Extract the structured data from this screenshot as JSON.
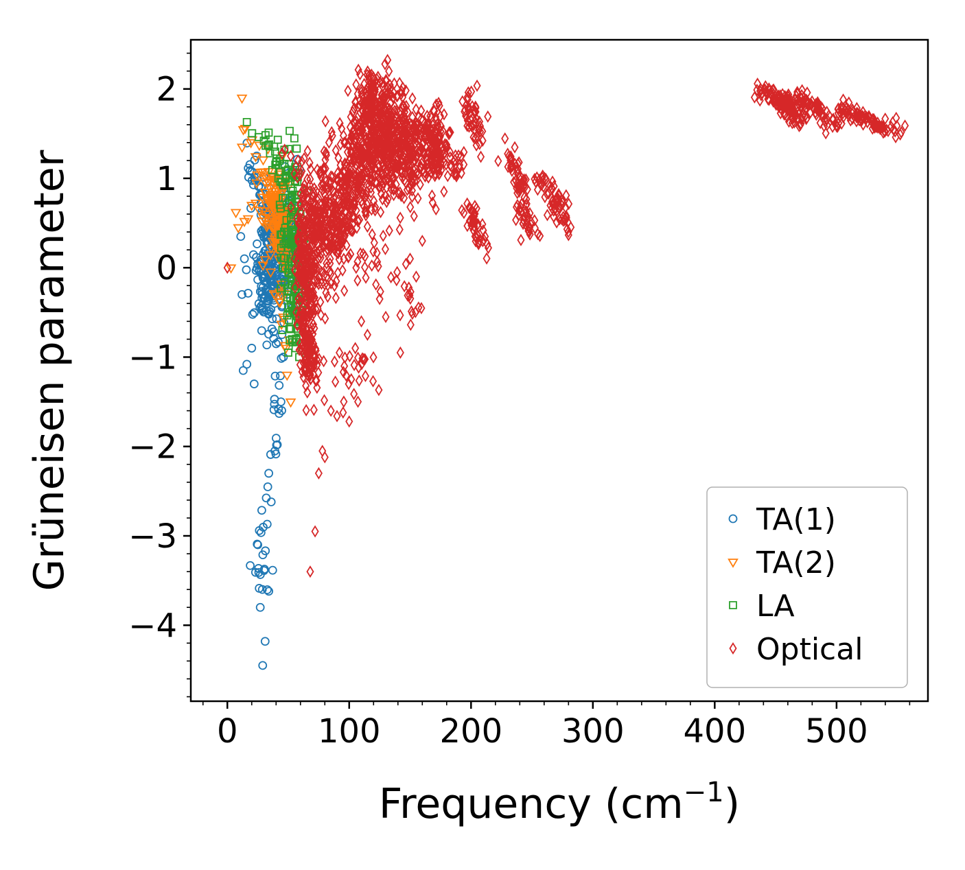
{
  "figure": {
    "xlabel_main": "Frequency (cm",
    "xlabel_sup": "−1",
    "xlabel_close": ")",
    "ylabel": "Grüneisen parameter"
  },
  "chart_data": {
    "type": "scatter",
    "title": "",
    "xlabel": "Frequency (cm^-1)",
    "ylabel": "Grüneisen parameter",
    "xlim": [
      -30,
      575
    ],
    "ylim": [
      -4.85,
      2.55
    ],
    "x_ticks": [
      0,
      100,
      200,
      300,
      400,
      500
    ],
    "x_tick_labels": [
      "0",
      "100",
      "200",
      "300",
      "400",
      "500"
    ],
    "x_minor_step": 20,
    "y_ticks": [
      2,
      1,
      0,
      -1,
      -2,
      -3,
      -4
    ],
    "y_tick_labels": [
      "2",
      "1",
      "0",
      "−1",
      "−2",
      "−3",
      "−4"
    ],
    "y_minor_step": 0.2,
    "grid": false,
    "legend": {
      "position": "lower right",
      "entries": [
        {
          "label": "TA(1)",
          "marker": "circle",
          "color": "#1f77b4"
        },
        {
          "label": "TA(2)",
          "marker": "triangle-down",
          "color": "#ff7f0e"
        },
        {
          "label": "LA",
          "marker": "square",
          "color": "#2ca02c"
        },
        {
          "label": "Optical",
          "marker": "diamond-thin",
          "color": "#d62728"
        }
      ]
    },
    "series": [
      {
        "name": "TA(1)",
        "marker": "circle",
        "color": "#1f77b4",
        "seed": 11,
        "clusters": [
          {
            "kind": "gauss",
            "cx": 38,
            "cy": 0.15,
            "sx": 7,
            "sy": 0.3,
            "n": 150
          },
          {
            "kind": "gauss",
            "cx": 33,
            "cy": -0.25,
            "sx": 7,
            "sy": 0.3,
            "n": 80
          },
          {
            "kind": "gauss",
            "cx": 45,
            "cy": 0.35,
            "sx": 6,
            "sy": 0.25,
            "n": 60
          },
          {
            "kind": "streak",
            "x1": 17,
            "y1": 1.25,
            "x2": 38,
            "y2": 0.5,
            "jx": 2,
            "jy": 0.12,
            "n": 30
          },
          {
            "kind": "streak",
            "x1": 24,
            "y1": -3.45,
            "x2": 43,
            "y2": -1.15,
            "jx": 2.5,
            "jy": 0.22,
            "n": 26
          },
          {
            "kind": "gauss",
            "cx": 27,
            "cy": -3.42,
            "sx": 4,
            "sy": 0.14,
            "n": 10
          }
        ],
        "points": [
          [
            29,
            -4.45
          ],
          [
            31,
            -4.18
          ],
          [
            27,
            -3.8
          ],
          [
            34,
            -3.62
          ],
          [
            25,
            -3.1
          ],
          [
            36,
            -2.62
          ],
          [
            34,
            -2.3
          ],
          [
            39,
            -2.05
          ],
          [
            41,
            -1.98
          ],
          [
            13,
            -1.15
          ],
          [
            16,
            -1.08
          ],
          [
            20,
            -0.9
          ],
          [
            22,
            -1.3
          ],
          [
            44,
            -1.5
          ],
          [
            46,
            -1.0
          ],
          [
            40,
            -0.85
          ],
          [
            11,
            0.35
          ],
          [
            12,
            -0.3
          ],
          [
            14,
            0.1
          ]
        ]
      },
      {
        "name": "TA(2)",
        "marker": "triangle-down",
        "color": "#ff7f0e",
        "seed": 22,
        "clusters": [
          {
            "kind": "gauss",
            "cx": 42,
            "cy": 0.55,
            "sx": 6,
            "sy": 0.25,
            "n": 120
          },
          {
            "kind": "gauss",
            "cx": 36,
            "cy": 0.8,
            "sx": 5,
            "sy": 0.2,
            "n": 40
          },
          {
            "kind": "streak",
            "x1": 13,
            "y1": 1.62,
            "x2": 36,
            "y2": 0.95,
            "jx": 2,
            "jy": 0.1,
            "n": 14
          },
          {
            "kind": "streak",
            "x1": 40,
            "y1": -0.2,
            "x2": 50,
            "y2": -0.85,
            "jx": 2,
            "jy": 0.15,
            "n": 10
          }
        ],
        "points": [
          [
            12,
            1.9
          ],
          [
            7,
            0.62
          ],
          [
            9,
            0.45
          ],
          [
            14,
            0.52
          ],
          [
            3,
            0.0
          ],
          [
            52,
            -1.5
          ],
          [
            49,
            -1.2
          ],
          [
            20,
            0.7
          ],
          [
            17,
            0.55
          ],
          [
            24,
            0.95
          ],
          [
            46,
            -0.55
          ],
          [
            44,
            -0.3
          ],
          [
            48,
            -0.9
          ]
        ]
      },
      {
        "name": "LA",
        "marker": "square",
        "color": "#2ca02c",
        "seed": 33,
        "clusters": [
          {
            "kind": "gauss",
            "cx": 53,
            "cy": 0.35,
            "sx": 4.5,
            "sy": 0.45,
            "n": 130
          },
          {
            "kind": "gauss",
            "cx": 56,
            "cy": -0.45,
            "sx": 3.5,
            "sy": 0.22,
            "n": 45
          },
          {
            "kind": "streak",
            "x1": 20,
            "y1": 1.6,
            "x2": 45,
            "y2": 1.2,
            "jx": 3,
            "jy": 0.08,
            "n": 12
          },
          {
            "kind": "gauss",
            "cx": 46,
            "cy": 1.05,
            "sx": 4,
            "sy": 0.12,
            "n": 20
          }
        ],
        "points": [
          [
            50,
            -0.95
          ],
          [
            56,
            -0.9
          ],
          [
            59,
            -1.0
          ],
          [
            53,
            -0.8
          ],
          [
            16,
            1.63
          ],
          [
            30,
            1.42
          ],
          [
            62,
            0.15
          ],
          [
            64,
            -0.2
          ],
          [
            60,
            0.6
          ],
          [
            35,
            1.28
          ],
          [
            40,
            1.18
          ]
        ]
      },
      {
        "name": "Optical",
        "marker": "diamond-thin",
        "color": "#d62728",
        "seed": 44,
        "clusters": [
          {
            "kind": "gauss",
            "cx": 62,
            "cy": 0.0,
            "sx": 3.5,
            "sy": 0.5,
            "n": 140
          },
          {
            "kind": "gauss",
            "cx": 66,
            "cy": -0.55,
            "sx": 4,
            "sy": 0.35,
            "n": 90
          },
          {
            "kind": "gauss",
            "cx": 68,
            "cy": -1.05,
            "sx": 4,
            "sy": 0.15,
            "n": 60
          },
          {
            "kind": "gauss",
            "cx": 75,
            "cy": 0.35,
            "sx": 8,
            "sy": 0.35,
            "n": 180
          },
          {
            "kind": "gauss",
            "cx": 90,
            "cy": 0.55,
            "sx": 10,
            "sy": 0.35,
            "n": 180
          },
          {
            "kind": "gauss",
            "cx": 105,
            "cy": 1.0,
            "sx": 10,
            "sy": 0.3,
            "n": 150
          },
          {
            "kind": "gauss",
            "cx": 125,
            "cy": 1.45,
            "sx": 13,
            "sy": 0.3,
            "n": 380
          },
          {
            "kind": "gauss",
            "cx": 150,
            "cy": 1.3,
            "sx": 13,
            "sy": 0.28,
            "n": 200
          },
          {
            "kind": "gauss",
            "cx": 120,
            "cy": 1.9,
            "sx": 7,
            "sy": 0.14,
            "n": 80
          },
          {
            "kind": "streak",
            "x1": 160,
            "y1": 1.75,
            "x2": 173,
            "y2": 1.2,
            "jx": 4,
            "jy": 0.12,
            "n": 60
          },
          {
            "kind": "gauss",
            "cx": 172,
            "cy": 1.25,
            "sx": 5,
            "sy": 0.18,
            "n": 50
          },
          {
            "kind": "gauss",
            "cx": 188,
            "cy": 1.12,
            "sx": 4,
            "sy": 0.1,
            "n": 20
          },
          {
            "kind": "gauss",
            "cx": 100,
            "cy": -1.25,
            "sx": 10,
            "sy": 0.2,
            "n": 24
          },
          {
            "kind": "streak",
            "x1": 135,
            "y1": -0.1,
            "x2": 158,
            "y2": -0.55,
            "jx": 4,
            "jy": 0.15,
            "n": 16
          },
          {
            "kind": "gauss",
            "cx": 122,
            "cy": 0.1,
            "sx": 6,
            "sy": 0.18,
            "n": 14
          },
          {
            "kind": "streak",
            "x1": 196,
            "y1": 1.88,
            "x2": 208,
            "y2": 1.42,
            "jx": 2.5,
            "jy": 0.1,
            "n": 48
          },
          {
            "kind": "streak",
            "x1": 197,
            "y1": 0.68,
            "x2": 210,
            "y2": 0.33,
            "jx": 2.5,
            "jy": 0.09,
            "n": 40
          },
          {
            "kind": "streak",
            "x1": 229,
            "y1": 1.33,
            "x2": 243,
            "y2": 0.9,
            "jx": 2.5,
            "jy": 0.09,
            "n": 40
          },
          {
            "kind": "streak",
            "x1": 237,
            "y1": 0.73,
            "x2": 252,
            "y2": 0.37,
            "jx": 2.5,
            "jy": 0.09,
            "n": 36
          },
          {
            "kind": "streak",
            "x1": 256,
            "y1": 1.03,
            "x2": 272,
            "y2": 0.6,
            "jx": 2.5,
            "jy": 0.09,
            "n": 36
          },
          {
            "kind": "streak",
            "x1": 267,
            "y1": 0.82,
            "x2": 284,
            "y2": 0.45,
            "jx": 2.5,
            "jy": 0.09,
            "n": 32
          },
          {
            "kind": "streak",
            "x1": 437,
            "y1": 2.0,
            "x2": 463,
            "y2": 1.8,
            "jx": 3,
            "jy": 0.05,
            "n": 70
          },
          {
            "kind": "streak",
            "x1": 452,
            "y1": 1.93,
            "x2": 474,
            "y2": 1.6,
            "jx": 3,
            "jy": 0.05,
            "n": 60
          },
          {
            "kind": "streak",
            "x1": 468,
            "y1": 1.93,
            "x2": 499,
            "y2": 1.6,
            "jx": 4,
            "jy": 0.05,
            "n": 70
          },
          {
            "kind": "streak",
            "x1": 505,
            "y1": 1.77,
            "x2": 549,
            "y2": 1.52,
            "jx": 4,
            "jy": 0.05,
            "n": 85
          }
        ],
        "points": [
          [
            85,
            -1.6
          ],
          [
            90,
            -1.66
          ],
          [
            95,
            -1.62
          ],
          [
            100,
            -1.72
          ],
          [
            78,
            -2.05
          ],
          [
            80,
            -2.12
          ],
          [
            75,
            -2.3
          ],
          [
            72,
            -2.95
          ],
          [
            68,
            -3.4
          ],
          [
            142,
            -0.95
          ],
          [
            47,
            1.32
          ],
          [
            52,
            1.25
          ],
          [
            55,
            1.05
          ],
          [
            58,
            1.2
          ],
          [
            45,
            1.28
          ],
          [
            110,
            -0.6
          ],
          [
            115,
            -0.75
          ],
          [
            105,
            -0.9
          ],
          [
            125,
            -0.35
          ],
          [
            130,
            -0.55
          ],
          [
            96,
            -1.1
          ],
          [
            88,
            -1.05
          ],
          [
            92,
            -0.95
          ],
          [
            150,
            0.1
          ],
          [
            155,
            -0.1
          ],
          [
            160,
            0.3
          ],
          [
            0,
            0.0
          ]
        ]
      }
    ]
  }
}
